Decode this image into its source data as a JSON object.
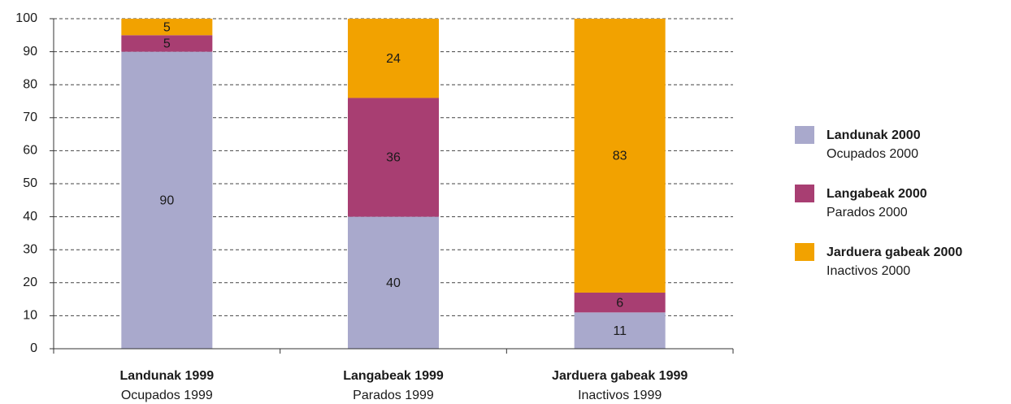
{
  "chart_data": {
    "type": "stacked_bar",
    "categories": [
      "Landunak 1999",
      "Langabeak 1999",
      "Jarduera gabeak 1999"
    ],
    "category_sublabels": [
      "Ocupados 1999",
      "Parados 1999",
      "Inactivos 1999"
    ],
    "series": [
      {
        "name": "Landunak 2000",
        "subname": "Ocupados 2000",
        "color": "#a9a9cc",
        "values": [
          90,
          40,
          11
        ]
      },
      {
        "name": "Langabeak 2000",
        "subname": "Parados 2000",
        "color": "#a83e72",
        "values": [
          5,
          36,
          6
        ]
      },
      {
        "name": "Jarduera gabeak 2000",
        "subname": "Inactivos 2000",
        "color": "#f2a200",
        "values": [
          5,
          24,
          83
        ]
      }
    ],
    "ylim": [
      0,
      100
    ],
    "yticks": [
      0,
      10,
      20,
      30,
      40,
      50,
      60,
      70,
      80,
      90,
      100
    ],
    "grid": true,
    "legend": "right"
  }
}
